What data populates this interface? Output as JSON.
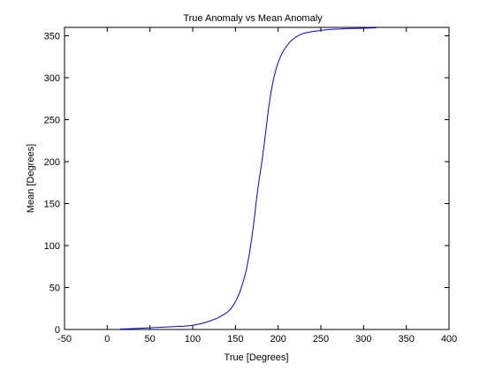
{
  "chart_data": {
    "type": "line",
    "title": "True Anomaly vs Mean Anomaly",
    "xlabel": "True [Degrees]",
    "ylabel": "Mean [Degrees]",
    "xlim": [
      -50,
      400
    ],
    "ylim": [
      0,
      360
    ],
    "xticks": [
      -50,
      0,
      50,
      100,
      150,
      200,
      250,
      300,
      350,
      400
    ],
    "yticks": [
      0,
      50,
      100,
      150,
      200,
      250,
      300,
      350
    ],
    "grid": false,
    "legend": "none",
    "series": [
      {
        "color": "#0000ff",
        "x": [
          15,
          30,
          50,
          70,
          90,
          100,
          110,
          120,
          130,
          140,
          145,
          150,
          155,
          160,
          163,
          166,
          169,
          172,
          175,
          178,
          180,
          183,
          186,
          189,
          192,
          195,
          198,
          201,
          205,
          210,
          215,
          220,
          225,
          230,
          240,
          250,
          260,
          280,
          300,
          315
        ],
        "y": [
          0.5,
          1,
          2,
          3,
          4,
          5,
          7,
          10,
          14,
          20,
          25,
          33,
          44,
          60,
          72,
          88,
          108,
          131,
          158,
          180,
          193,
          215,
          240,
          265,
          285,
          300,
          312,
          321,
          330,
          338,
          344,
          348,
          351,
          353,
          355,
          356.5,
          357.5,
          358.5,
          359,
          359.5
        ]
      }
    ]
  }
}
